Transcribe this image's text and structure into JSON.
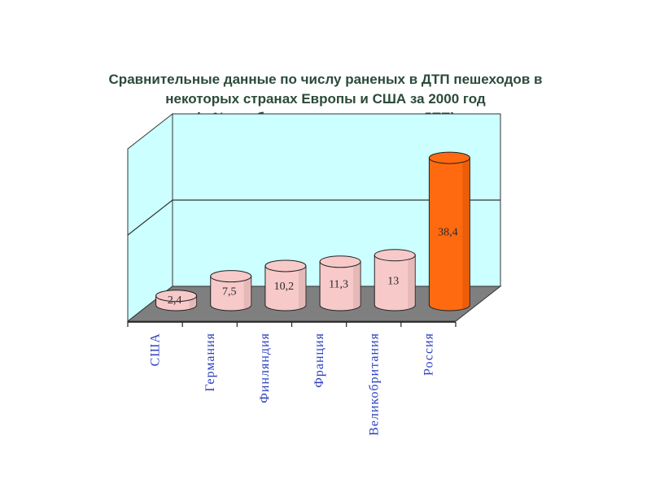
{
  "chart_data": {
    "type": "bar",
    "title": "Сравнительные данные по числу раненых в ДТП пешеходов в некоторых странах Европы и США за 2000 год",
    "title_lines": [
      "Сравнительные данные по числу раненых в ДТП пешеходов в",
      "некоторых странах Европы и США за 2000 год",
      "(в % от общего числа раненых в ДТП)"
    ],
    "categories": [
      "США",
      "Германия",
      "Финляндия",
      "Франция",
      "Великобритания",
      "Россия"
    ],
    "values": [
      2.4,
      7.5,
      10.2,
      11.3,
      13,
      38.4
    ],
    "value_labels": [
      "2,4",
      "7,5",
      "10,2",
      "11,3",
      "13",
      "38,4"
    ],
    "ylim": [
      0,
      45
    ],
    "grid": true,
    "style": "3d-cylinder",
    "colors": {
      "bar_default": "#f7c9c9",
      "bar_highlight": "#ff6a10",
      "wall": "#ccffff",
      "floor": "#7f7f7f",
      "category_text": "#2b3fbf",
      "title_text": "#2b4a3a"
    }
  }
}
